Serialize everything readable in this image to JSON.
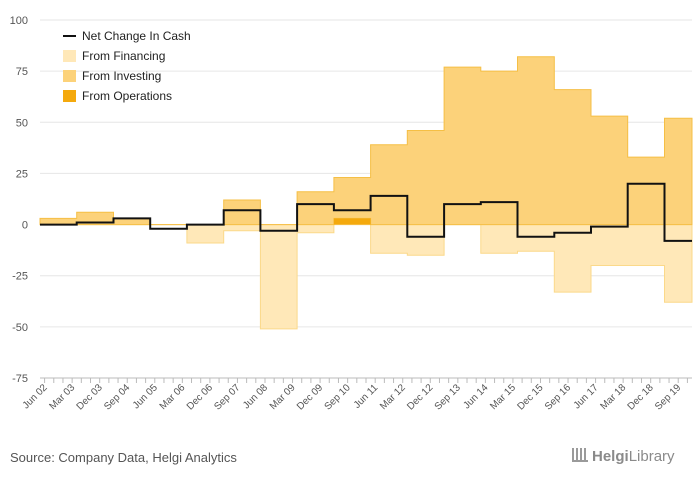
{
  "chart_data": {
    "type": "area",
    "x": [
      "Jun 02",
      "Sep 02",
      "Dec 02",
      "Mar 03",
      "Jun 03",
      "Sep 03",
      "Dec 03",
      "Mar 04",
      "Jun 04",
      "Sep 04",
      "Dec 04",
      "Mar 05",
      "Jun 05",
      "Sep 05",
      "Dec 05",
      "Mar 06",
      "Jun 06",
      "Sep 06",
      "Dec 06",
      "Mar 07",
      "Jun 07",
      "Sep 07",
      "Dec 07",
      "Mar 08",
      "Jun 08",
      "Sep 08",
      "Dec 08",
      "Mar 09",
      "Jun 09",
      "Sep 09",
      "Dec 09",
      "Mar 10",
      "Jun 10",
      "Sep 10",
      "Dec 10",
      "Mar 11",
      "Jun 11",
      "Sep 11",
      "Dec 11",
      "Mar 12",
      "Jun 12",
      "Sep 12",
      "Dec 12",
      "Mar 13",
      "Jun 13",
      "Sep 13",
      "Dec 13",
      "Mar 14",
      "Jun 14",
      "Sep 14",
      "Dec 14",
      "Mar 15",
      "Jun 15",
      "Sep 15",
      "Dec 15",
      "Mar 16",
      "Jun 16",
      "Sep 16",
      "Dec 16",
      "Mar 17",
      "Jun 17",
      "Sep 17",
      "Dec 17",
      "Mar 18",
      "Jun 18",
      "Sep 18",
      "Dec 18",
      "Mar 19",
      "Jun 19",
      "Sep 19",
      "Dec 19"
    ],
    "x_tick_labels": [
      "Jun 02",
      "Mar 03",
      "Dec 03",
      "Sep 04",
      "Jun 05",
      "Mar 06",
      "Dec 06",
      "Sep 07",
      "Jun 08",
      "Mar 09",
      "Dec 09",
      "Sep 10",
      "Jun 11",
      "Mar 12",
      "Dec 12",
      "Sep 13",
      "Jun 14",
      "Mar 15",
      "Dec 15",
      "Sep 16",
      "Jun 17",
      "Mar 18",
      "Dec 18",
      "Sep 19"
    ],
    "series": [
      {
        "name": "Net Change In Cash",
        "values": [
          0,
          0,
          0,
          0,
          1,
          1,
          1,
          1,
          3,
          3,
          3,
          3,
          -2,
          -2,
          -2,
          -2,
          0,
          0,
          0,
          0,
          7,
          7,
          7,
          7,
          -3,
          -3,
          -3,
          -3,
          10,
          10,
          10,
          10,
          7,
          7,
          7,
          7,
          14,
          14,
          14,
          14,
          -6,
          -6,
          -6,
          -6,
          10,
          10,
          10,
          10,
          11,
          11,
          11,
          11,
          -6,
          -6,
          -6,
          -6,
          -4,
          -4,
          -4,
          -4,
          -1,
          -1,
          -1,
          -1,
          20,
          20,
          20,
          20,
          -8,
          -8,
          -8
        ]
      },
      {
        "name": "From Financing",
        "values": [
          0,
          0,
          0,
          0,
          0,
          0,
          0,
          0,
          0,
          0,
          0,
          0,
          0,
          0,
          0,
          0,
          -9,
          -9,
          -9,
          -9,
          -3,
          -3,
          -3,
          -3,
          -51,
          -51,
          -51,
          -51,
          -4,
          -4,
          -4,
          -4,
          0,
          0,
          0,
          0,
          -14,
          -14,
          -14,
          -14,
          -15,
          -15,
          -15,
          -15,
          0,
          0,
          0,
          0,
          -14,
          -14,
          -14,
          -14,
          -13,
          -13,
          -13,
          -13,
          -33,
          -33,
          -33,
          -33,
          -20,
          -20,
          -20,
          -20,
          -20,
          -20,
          -20,
          -20,
          -38,
          -38,
          -38
        ]
      },
      {
        "name": "From Investing",
        "values": [
          3,
          3,
          3,
          3,
          6,
          6,
          6,
          6,
          3,
          3,
          3,
          3,
          0,
          0,
          0,
          0,
          0,
          0,
          0,
          0,
          12,
          12,
          12,
          12,
          0,
          0,
          0,
          0,
          16,
          16,
          16,
          16,
          20,
          20,
          20,
          20,
          39,
          39,
          39,
          39,
          46,
          46,
          46,
          46,
          77,
          77,
          77,
          77,
          75,
          75,
          75,
          75,
          82,
          82,
          82,
          82,
          66,
          66,
          66,
          66,
          53,
          53,
          53,
          53,
          33,
          33,
          33,
          33,
          52,
          52,
          52
        ]
      },
      {
        "name": "From Operations",
        "values": [
          0,
          0,
          0,
          0,
          0,
          0,
          0,
          0,
          0,
          0,
          0,
          0,
          0,
          0,
          0,
          0,
          0,
          0,
          0,
          0,
          0,
          0,
          0,
          0,
          0,
          0,
          0,
          0,
          0,
          0,
          0,
          0,
          3,
          3,
          3,
          3,
          0,
          0,
          0,
          0,
          0,
          0,
          0,
          0,
          0,
          0,
          0,
          0,
          0,
          0,
          0,
          0,
          0,
          0,
          0,
          0,
          0,
          0,
          0,
          0,
          0,
          0,
          0,
          0,
          0,
          0,
          0,
          0,
          0,
          0,
          0
        ]
      }
    ],
    "ylim": [
      -75,
      100
    ],
    "yticks": [
      100,
      75,
      50,
      25,
      0,
      -25,
      -50,
      -75
    ],
    "grid": true,
    "legend_position": "top-left",
    "colors": {
      "net": "#111111",
      "financing": "#ffe8b8",
      "financing_line": "#fbd98a",
      "investing": "#fcd27a",
      "investing_line": "#f5bf45",
      "operations": "#f4a90d"
    }
  },
  "footer": {
    "source": "Source: Company Data, Helgi Analytics",
    "brand_bold": "Helgi",
    "brand_thin": "Library"
  }
}
